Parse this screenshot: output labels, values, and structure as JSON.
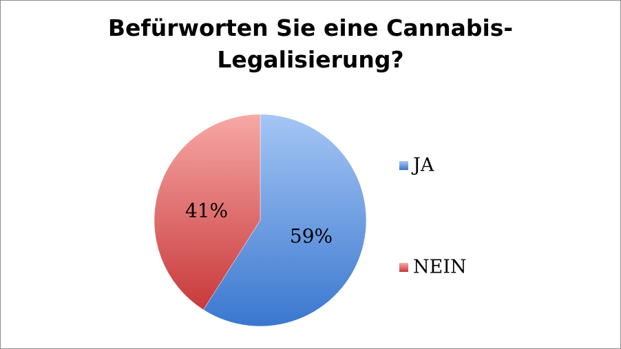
{
  "chart_data": {
    "type": "pie",
    "title": [
      "Befürworten Sie eine Cannabis-",
      "Legalisierung?"
    ],
    "categories": [
      "JA",
      "NEIN"
    ],
    "values": [
      59,
      41
    ],
    "data_labels": [
      "59%",
      "41%"
    ],
    "colors": [
      "#4f81bd",
      "#c0504d"
    ],
    "colors_light": [
      "#a5c6f5",
      "#f7a8a6"
    ],
    "legend": {
      "position": "right",
      "entries": [
        "JA",
        "NEIN"
      ]
    }
  }
}
